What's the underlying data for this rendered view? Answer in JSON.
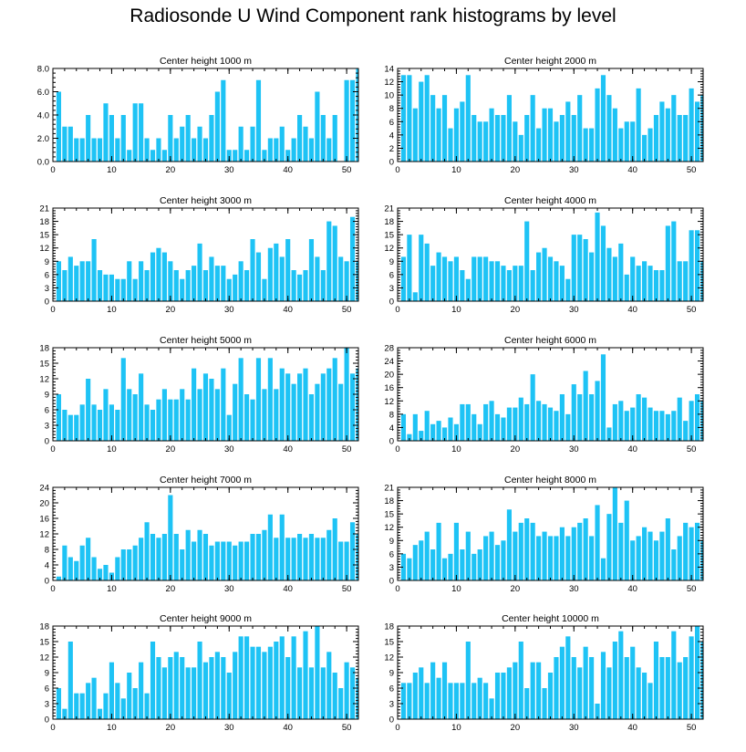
{
  "title": "Radiosonde U Wind Component rank histograms by level",
  "colors": {
    "bar": "#1ec3f5",
    "axis": "#000000",
    "background": "#ffffff"
  },
  "chart_data": [
    {
      "type": "bar",
      "title": "Center height 1000 m",
      "xlim": [
        0,
        52
      ],
      "ylim": [
        0,
        8
      ],
      "xticks": [
        0,
        10,
        20,
        30,
        40,
        50
      ],
      "yticks": [
        0,
        2,
        4,
        6,
        8
      ],
      "ytick_labels": [
        "0.0",
        "2.0",
        "4.0",
        "6.0",
        "8.0"
      ],
      "values": [
        0,
        6,
        3,
        3,
        2,
        2,
        4,
        2,
        2,
        5,
        4,
        2,
        4,
        1,
        5,
        5,
        2,
        1,
        2,
        1,
        4,
        2,
        3,
        4,
        2,
        3,
        2,
        4,
        6,
        7,
        1,
        1,
        3,
        1,
        3,
        7,
        1,
        2,
        2,
        3,
        1,
        2,
        4,
        3,
        2,
        6,
        4,
        2,
        4,
        0,
        7,
        7,
        8
      ]
    },
    {
      "type": "bar",
      "title": "Center height 2000 m",
      "xlim": [
        0,
        52
      ],
      "ylim": [
        0,
        14
      ],
      "xticks": [
        0,
        10,
        20,
        30,
        40,
        50
      ],
      "yticks": [
        0,
        2,
        4,
        6,
        8,
        10,
        12,
        14
      ],
      "ytick_labels": [
        "0",
        "2",
        "4",
        "6",
        "8",
        "10",
        "12",
        "14"
      ],
      "values": [
        0,
        13,
        13,
        8,
        12,
        13,
        10,
        8,
        10,
        5,
        8,
        9,
        13,
        7,
        6,
        6,
        8,
        7,
        7,
        10,
        6,
        4,
        7,
        10,
        5,
        8,
        8,
        6,
        7,
        9,
        7,
        10,
        5,
        5,
        11,
        13,
        10,
        8,
        5,
        6,
        6,
        11,
        4,
        5,
        7,
        9,
        8,
        10,
        7,
        7,
        11,
        9,
        10
      ]
    },
    {
      "type": "bar",
      "title": "Center height 3000 m",
      "xlim": [
        0,
        52
      ],
      "ylim": [
        0,
        21
      ],
      "xticks": [
        0,
        10,
        20,
        30,
        40,
        50
      ],
      "yticks": [
        0,
        3,
        6,
        9,
        12,
        15,
        18,
        21
      ],
      "ytick_labels": [
        "0",
        "3",
        "6",
        "9",
        "12",
        "15",
        "18",
        "21"
      ],
      "values": [
        0,
        9,
        7,
        10,
        8,
        9,
        9,
        14,
        7,
        6,
        6,
        5,
        5,
        9,
        5,
        9,
        7,
        11,
        12,
        11,
        9,
        7,
        5,
        7,
        8,
        13,
        7,
        10,
        8,
        8,
        5,
        6,
        9,
        7,
        14,
        11,
        5,
        12,
        13,
        10,
        14,
        7,
        6,
        7,
        14,
        10,
        7,
        18,
        17,
        10,
        9,
        19,
        9
      ]
    },
    {
      "type": "bar",
      "title": "Center height 4000 m",
      "xlim": [
        0,
        52
      ],
      "ylim": [
        0,
        21
      ],
      "xticks": [
        0,
        10,
        20,
        30,
        40,
        50
      ],
      "yticks": [
        0,
        3,
        6,
        9,
        12,
        15,
        18,
        21
      ],
      "ytick_labels": [
        "0",
        "3",
        "6",
        "9",
        "12",
        "15",
        "18",
        "21"
      ],
      "values": [
        0,
        10,
        15,
        2,
        15,
        13,
        8,
        11,
        10,
        9,
        10,
        7,
        5,
        10,
        10,
        10,
        9,
        9,
        8,
        7,
        8,
        8,
        18,
        7,
        11,
        12,
        10,
        9,
        8,
        5,
        15,
        15,
        14,
        11,
        20,
        17,
        12,
        10,
        13,
        6,
        10,
        8,
        9,
        8,
        7,
        7,
        17,
        18,
        9,
        9,
        16,
        16,
        9
      ]
    },
    {
      "type": "bar",
      "title": "Center height 5000 m",
      "xlim": [
        0,
        52
      ],
      "ylim": [
        0,
        18
      ],
      "xticks": [
        0,
        10,
        20,
        30,
        40,
        50
      ],
      "yticks": [
        0,
        3,
        6,
        9,
        12,
        15,
        18
      ],
      "ytick_labels": [
        "0",
        "3",
        "6",
        "9",
        "12",
        "15",
        "18"
      ],
      "values": [
        0,
        9,
        6,
        5,
        5,
        7,
        12,
        7,
        6,
        10,
        7,
        6,
        16,
        10,
        9,
        13,
        7,
        6,
        8,
        10,
        8,
        8,
        10,
        8,
        14,
        10,
        13,
        12,
        10,
        14,
        5,
        11,
        16,
        9,
        8,
        16,
        10,
        16,
        10,
        14,
        13,
        11,
        13,
        14,
        9,
        11,
        13,
        14,
        16,
        11,
        18,
        13,
        14
      ]
    },
    {
      "type": "bar",
      "title": "Center height 6000 m",
      "xlim": [
        0,
        52
      ],
      "ylim": [
        0,
        28
      ],
      "xticks": [
        0,
        10,
        20,
        30,
        40,
        50
      ],
      "yticks": [
        0,
        4,
        8,
        12,
        16,
        20,
        24,
        28
      ],
      "ytick_labels": [
        "0",
        "4",
        "8",
        "12",
        "16",
        "20",
        "24",
        "28"
      ],
      "values": [
        0,
        8,
        2,
        8,
        3,
        9,
        5,
        6,
        4,
        7,
        5,
        11,
        11,
        8,
        5,
        11,
        12,
        8,
        7,
        10,
        10,
        13,
        11,
        20,
        12,
        11,
        10,
        9,
        14,
        8,
        17,
        14,
        21,
        14,
        18,
        26,
        4,
        11,
        12,
        9,
        10,
        14,
        13,
        10,
        9,
        9,
        8,
        9,
        13,
        6,
        12,
        14,
        12
      ]
    },
    {
      "type": "bar",
      "title": "Center height 7000 m",
      "xlim": [
        0,
        52
      ],
      "ylim": [
        0,
        24
      ],
      "xticks": [
        0,
        10,
        20,
        30,
        40,
        50
      ],
      "yticks": [
        0,
        4,
        8,
        12,
        16,
        20,
        24
      ],
      "ytick_labels": [
        "0",
        "4",
        "8",
        "12",
        "16",
        "20",
        "24"
      ],
      "values": [
        0,
        1,
        9,
        6,
        5,
        9,
        11,
        6,
        3,
        4,
        2,
        6,
        8,
        8,
        9,
        11,
        15,
        12,
        11,
        12,
        22,
        12,
        8,
        13,
        10,
        13,
        12,
        9,
        10,
        10,
        10,
        9,
        10,
        10,
        12,
        12,
        13,
        17,
        11,
        17,
        11,
        11,
        12,
        11,
        12,
        11,
        11,
        13,
        16,
        10,
        10,
        15,
        12
      ]
    },
    {
      "type": "bar",
      "title": "Center height 8000 m",
      "xlim": [
        0,
        52
      ],
      "ylim": [
        0,
        21
      ],
      "xticks": [
        0,
        10,
        20,
        30,
        40,
        50
      ],
      "yticks": [
        0,
        3,
        6,
        9,
        12,
        15,
        18,
        21
      ],
      "ytick_labels": [
        "0",
        "3",
        "6",
        "9",
        "12",
        "15",
        "18",
        "21"
      ],
      "values": [
        0,
        6,
        5,
        8,
        9,
        11,
        7,
        13,
        5,
        6,
        13,
        7,
        11,
        6,
        7,
        10,
        11,
        8,
        9,
        16,
        11,
        13,
        14,
        13,
        10,
        11,
        10,
        10,
        12,
        10,
        12,
        13,
        14,
        10,
        17,
        5,
        15,
        21,
        13,
        18,
        9,
        10,
        12,
        11,
        9,
        11,
        14,
        7,
        10,
        13,
        12,
        13,
        9
      ]
    },
    {
      "type": "bar",
      "title": "Center height 9000 m",
      "xlim": [
        0,
        52
      ],
      "ylim": [
        0,
        18
      ],
      "xticks": [
        0,
        10,
        20,
        30,
        40,
        50
      ],
      "yticks": [
        0,
        3,
        6,
        9,
        12,
        15,
        18
      ],
      "ytick_labels": [
        "0",
        "3",
        "6",
        "9",
        "12",
        "15",
        "18"
      ],
      "values": [
        0,
        6,
        2,
        15,
        5,
        5,
        7,
        8,
        2,
        5,
        11,
        7,
        4,
        9,
        6,
        11,
        5,
        15,
        12,
        10,
        12,
        13,
        12,
        10,
        10,
        15,
        11,
        12,
        13,
        12,
        9,
        13,
        16,
        16,
        14,
        14,
        13,
        14,
        15,
        16,
        12,
        16,
        10,
        17,
        10,
        18,
        10,
        13,
        9,
        6,
        11,
        10,
        8
      ]
    },
    {
      "type": "bar",
      "title": "Center height 10000 m",
      "xlim": [
        0,
        52
      ],
      "ylim": [
        0,
        18
      ],
      "xticks": [
        0,
        10,
        20,
        30,
        40,
        50
      ],
      "yticks": [
        0,
        3,
        6,
        9,
        12,
        15,
        18
      ],
      "ytick_labels": [
        "0",
        "3",
        "6",
        "9",
        "12",
        "15",
        "18"
      ],
      "values": [
        0,
        7,
        7,
        9,
        10,
        7,
        11,
        8,
        11,
        7,
        7,
        7,
        15,
        7,
        8,
        7,
        4,
        9,
        9,
        10,
        11,
        15,
        6,
        11,
        11,
        6,
        9,
        12,
        14,
        16,
        12,
        10,
        14,
        12,
        3,
        13,
        10,
        15,
        17,
        12,
        14,
        10,
        9,
        7,
        15,
        12,
        12,
        17,
        11,
        12,
        16,
        18,
        15
      ]
    }
  ]
}
